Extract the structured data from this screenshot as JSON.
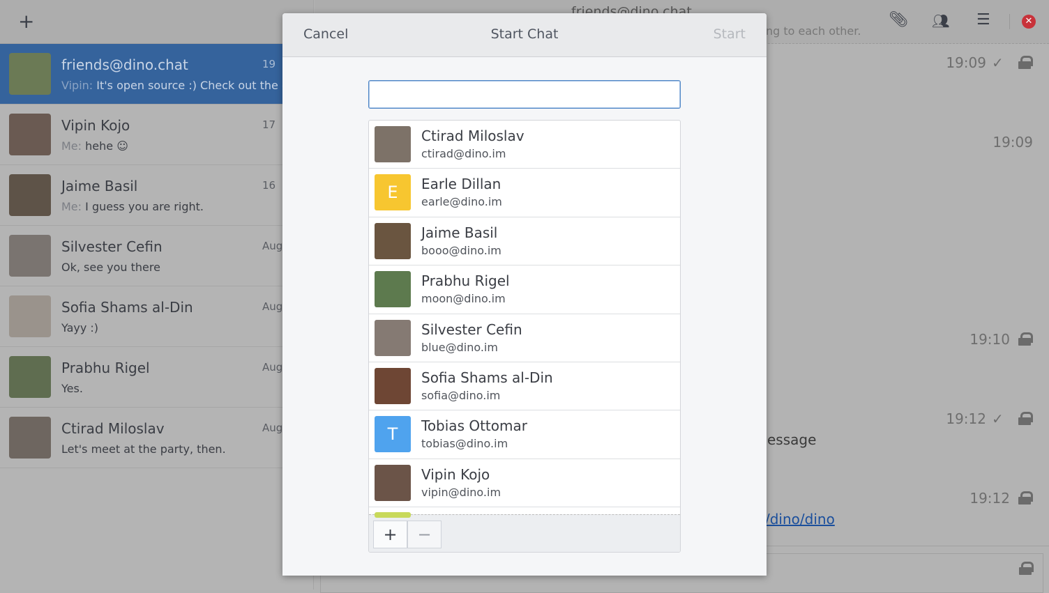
{
  "sidebar": {
    "add_label": "+",
    "conversations": [
      {
        "name": "friends@dino.chat",
        "who": "Vipin:",
        "preview": "It's open source :) Check out the co",
        "time": "19",
        "selected": true,
        "avatar_color": "#6b7a55"
      },
      {
        "name": "Vipin Kojo",
        "who": "Me:",
        "preview": "hehe ☺",
        "time": "17",
        "avatar_color": "#6a5a52"
      },
      {
        "name": "Jaime Basil",
        "who": "Me:",
        "preview": "I guess you are right.",
        "time": "16",
        "avatar_color": "#5e5348"
      },
      {
        "name": "Silvester Cefin",
        "who": "",
        "preview": "Ok, see you there",
        "time": "Aug",
        "avatar_color": "#7a7470"
      },
      {
        "name": "Sofia Shams al-Din",
        "who": "",
        "preview": "Yayy :)",
        "time": "Aug",
        "avatar_color": "#9a938c"
      },
      {
        "name": "Prabhu Rigel",
        "who": "",
        "preview": "Yes.",
        "time": "Aug",
        "avatar_color": "#5f6d50"
      },
      {
        "name": "Ctirad Miloslav",
        "who": "",
        "preview": "Let's meet at the party, then.",
        "time": "Aug",
        "avatar_color": "#6e6660"
      }
    ]
  },
  "chat": {
    "title": "friends@dino.chat",
    "subtitle": "ng to each other.",
    "messages": [
      {
        "time": "19:09",
        "check": true,
        "lock": true
      },
      {
        "time": "19:09",
        "check": false,
        "lock": false
      },
      {
        "time": "19:10",
        "check": false,
        "lock": true
      },
      {
        "time": "19:12",
        "check": true,
        "lock": true,
        "text": "essage"
      },
      {
        "time": "19:12",
        "check": false,
        "lock": true,
        "link": "/dino/dino"
      }
    ]
  },
  "dialog": {
    "cancel": "Cancel",
    "title": "Start Chat",
    "start": "Start",
    "search_value": "",
    "contacts": [
      {
        "name": "Ctirad Miloslav",
        "jid": "ctirad@dino.im",
        "avatar_color": "#7d7268",
        "initial": ""
      },
      {
        "name": "Earle Dillan",
        "jid": "earle@dino.im",
        "avatar_color": "#f7c630",
        "initial": "E"
      },
      {
        "name": "Jaime Basil",
        "jid": "booo@dino.im",
        "avatar_color": "#6a5540",
        "initial": ""
      },
      {
        "name": "Prabhu Rigel",
        "jid": "moon@dino.im",
        "avatar_color": "#5d7a4e",
        "initial": ""
      },
      {
        "name": "Silvester Cefin",
        "jid": "blue@dino.im",
        "avatar_color": "#857a73",
        "initial": ""
      },
      {
        "name": "Sofia Shams al-Din",
        "jid": "sofia@dino.im",
        "avatar_color": "#6e4634",
        "initial": ""
      },
      {
        "name": "Tobias Ottomar",
        "jid": "tobias@dino.im",
        "avatar_color": "#4fa3ee",
        "initial": "T"
      },
      {
        "name": "Vipin Kojo",
        "jid": "vipin@dino.im",
        "avatar_color": "#6b5448",
        "initial": ""
      }
    ],
    "add_label": "+",
    "remove_label": "−"
  }
}
